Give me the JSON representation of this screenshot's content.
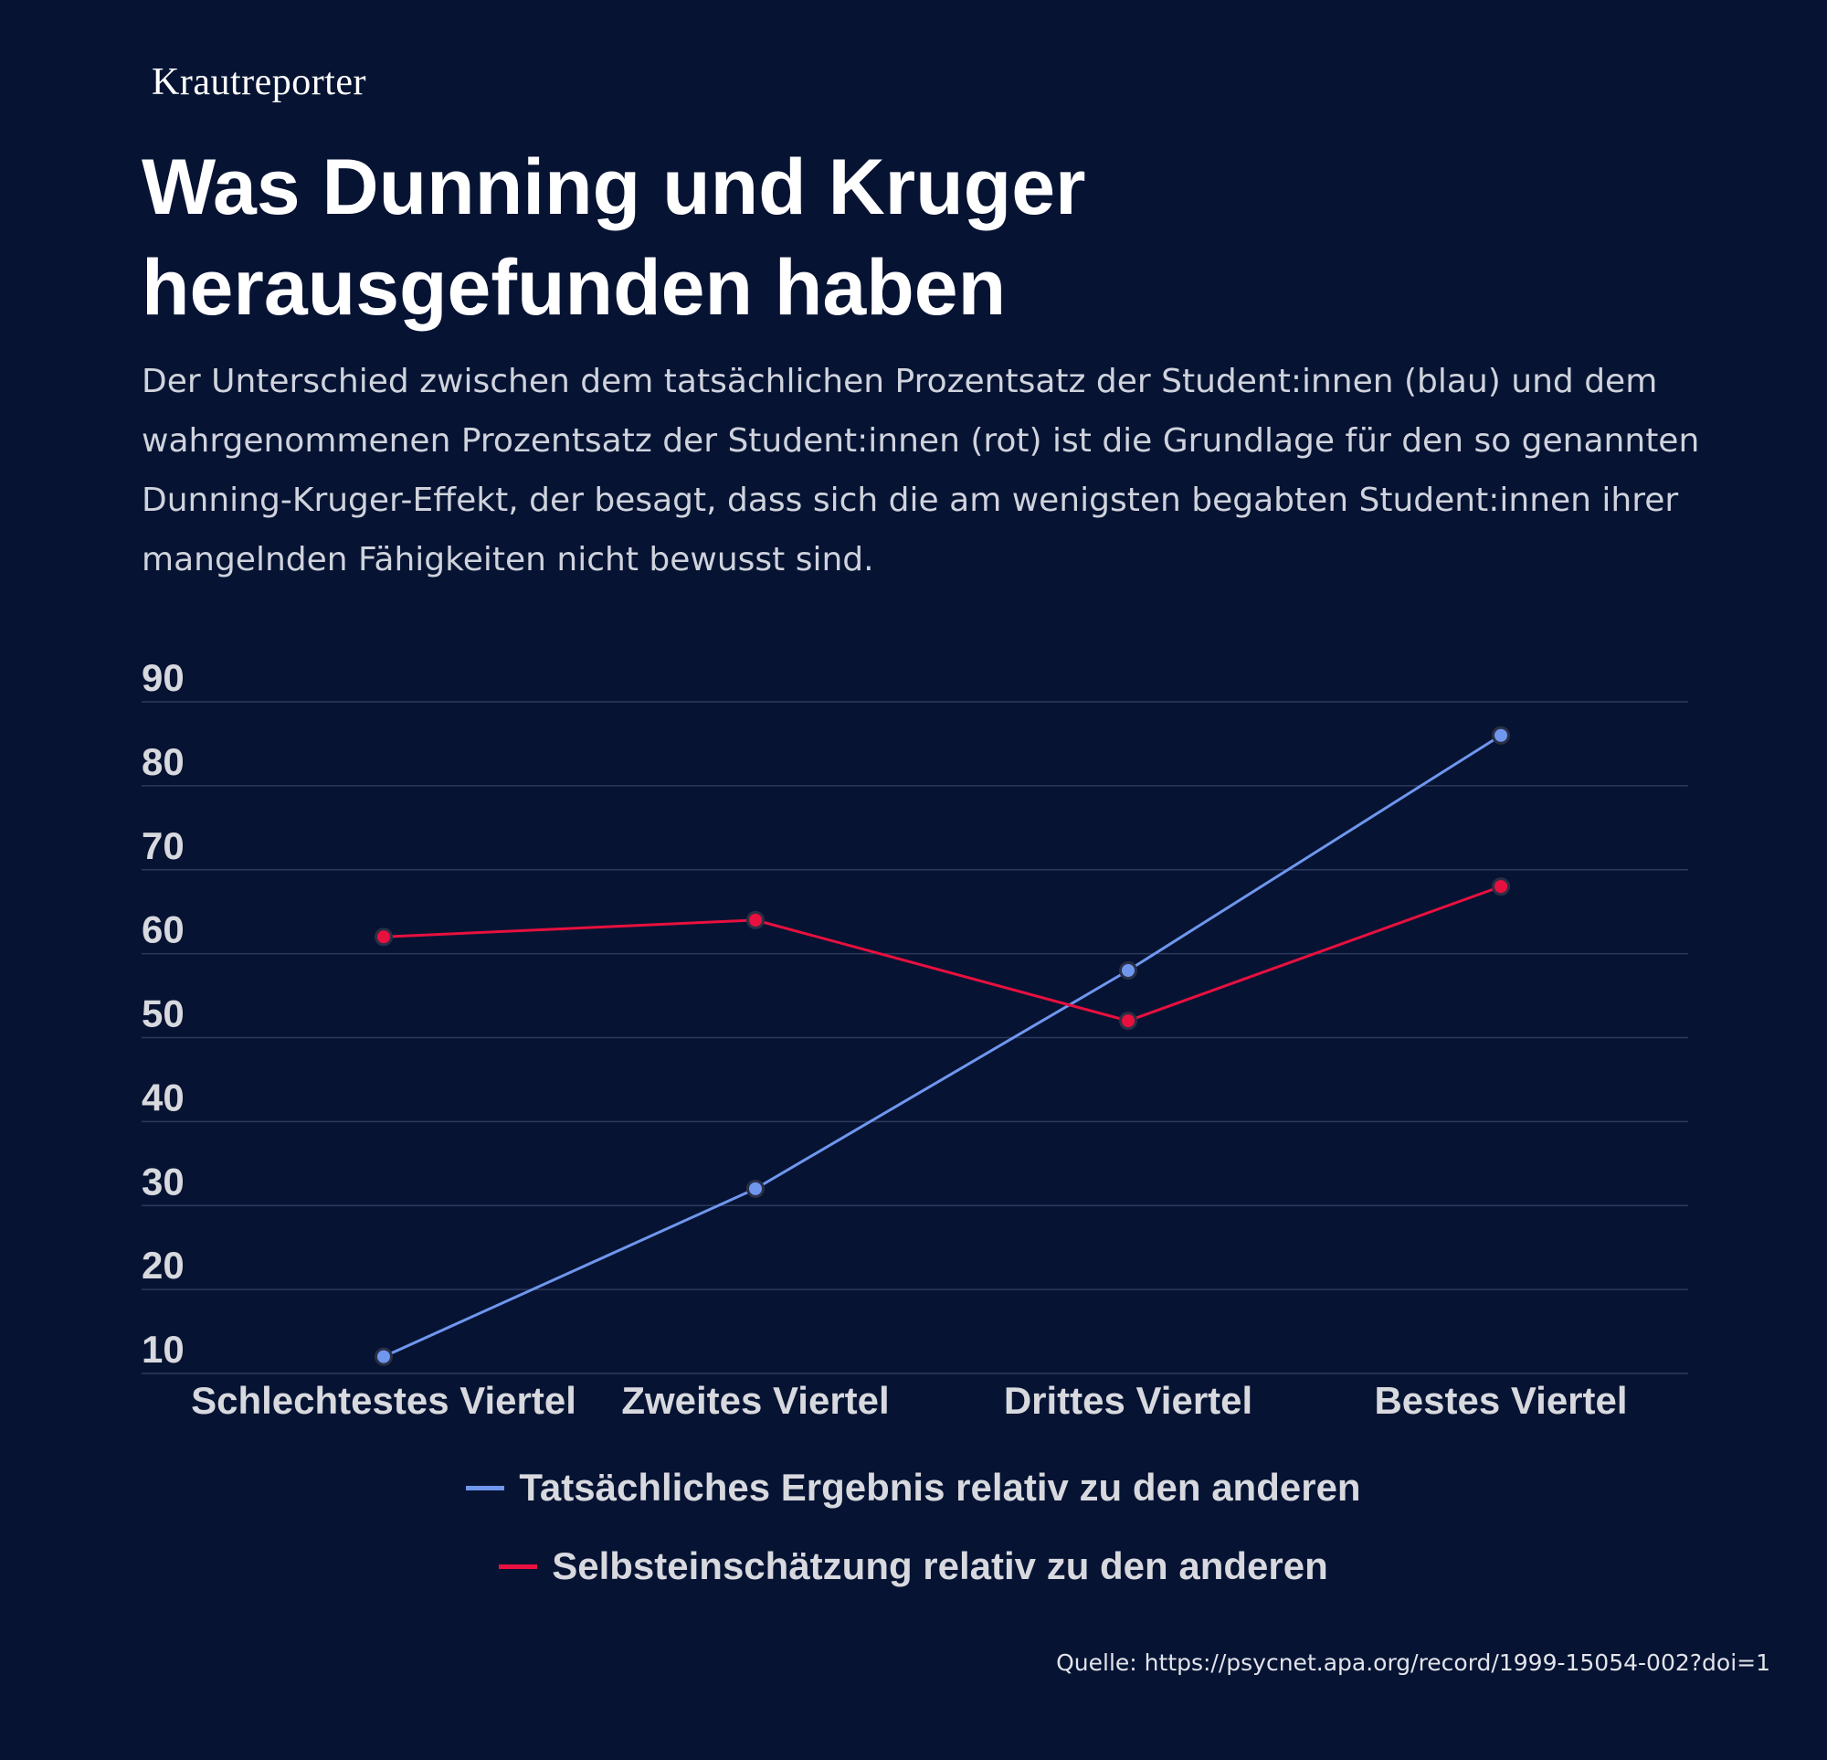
{
  "brand": "Krautreporter",
  "title_line1": "Was Dunning und Kruger",
  "title_line2": "herausgefunden haben",
  "subtitle": "Der Unterschied zwischen dem tatsächlichen Prozentsatz der Student:innen (blau) und dem wahrgenommenen Prozentsatz der Student:innen (rot) ist die Grundlage für den so genannten Dunning-Kruger-Effekt, der besagt, dass sich die am wenigsten begabten Student:innen ihrer mangelnden Fähigkeiten nicht bewusst sind.",
  "source": "Quelle: https://psycnet.apa.org/record/1999-15054-002?doi=1",
  "colors": {
    "background": "#061333",
    "actual": "#6f97ee",
    "self": "#e8103f",
    "grid": "#2e3a5c",
    "text": "#d7d9de"
  },
  "chart_data": {
    "type": "line",
    "categories": [
      "Schlechtestes Viertel",
      "Zweites Viertel",
      "Drittes Viertel",
      "Bestes Viertel"
    ],
    "series": [
      {
        "name": "Tatsächliches Ergebnis relativ zu den anderen",
        "values": [
          12,
          32,
          58,
          86
        ],
        "color": "#6f97ee"
      },
      {
        "name": "Selbsteinschätzung relativ zu den anderen",
        "values": [
          62,
          64,
          52,
          68
        ],
        "color": "#e8103f"
      }
    ],
    "yticks": [
      10,
      20,
      30,
      40,
      50,
      60,
      70,
      80,
      90
    ],
    "ylim": [
      10,
      90
    ],
    "grid": true,
    "legend_position": "bottom-center"
  }
}
